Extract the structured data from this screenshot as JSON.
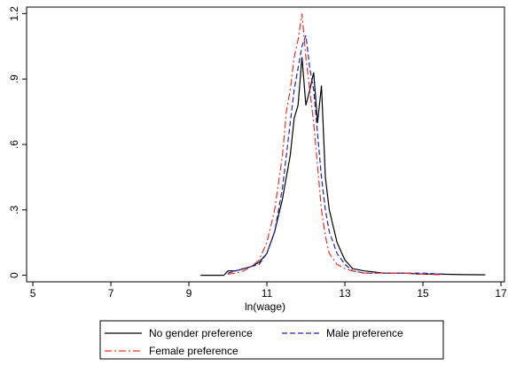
{
  "chart_data": {
    "type": "line",
    "xlabel": "ln(wage)",
    "x": [
      9.3,
      9.6,
      9.9,
      10.0,
      10.2,
      10.4,
      10.6,
      10.8,
      11.0,
      11.2,
      11.4,
      11.5,
      11.6,
      11.7,
      11.8,
      11.9,
      12.0,
      12.1,
      12.2,
      12.3,
      12.4,
      12.5,
      12.6,
      12.8,
      13.0,
      13.2,
      13.5,
      14.0,
      14.5,
      15.0,
      15.5,
      16.0,
      16.6
    ],
    "series": [
      {
        "name": "No gender preference",
        "color": "#000000",
        "style": "solid",
        "values": [
          0,
          0,
          0,
          0.02,
          0.02,
          0.03,
          0.04,
          0.06,
          0.1,
          0.2,
          0.35,
          0.45,
          0.55,
          0.72,
          0.78,
          1.0,
          0.78,
          0.85,
          0.93,
          0.7,
          0.87,
          0.45,
          0.3,
          0.15,
          0.07,
          0.03,
          0.02,
          0.01,
          0.01,
          0.005,
          0.005,
          0.003,
          0.002
        ]
      },
      {
        "name": "Male preference",
        "color": "#2222bb",
        "style": "dashed",
        "values": [
          null,
          null,
          null,
          0.01,
          0.02,
          0.03,
          0.04,
          0.05,
          0.1,
          0.2,
          0.4,
          0.55,
          0.7,
          0.85,
          0.95,
          1.05,
          1.1,
          0.95,
          0.85,
          0.65,
          0.45,
          0.3,
          0.2,
          0.1,
          0.05,
          0.02,
          0.01,
          0.01,
          0.01,
          0.01,
          0.005,
          null,
          null
        ]
      },
      {
        "name": "Female preference",
        "color": "#e8302a",
        "style": "dashdot",
        "values": [
          null,
          null,
          null,
          0.005,
          0.01,
          0.02,
          0.04,
          0.07,
          0.15,
          0.3,
          0.55,
          0.75,
          0.85,
          1.0,
          1.08,
          1.2,
          1.0,
          0.85,
          0.7,
          0.5,
          0.3,
          0.18,
          0.1,
          0.05,
          0.03,
          0.02,
          0.01,
          0.01,
          0.01,
          0.005,
          0.002,
          null,
          null
        ]
      }
    ],
    "xlim": [
      4.84,
      17.09
    ],
    "xticks": [
      5,
      7,
      9,
      11,
      13,
      15,
      17
    ],
    "ylim": [
      -0.03,
      1.23
    ],
    "yticks": [
      0,
      {
        "value": 0.3,
        "label": ".3"
      },
      {
        "value": 0.6,
        "label": ".6"
      },
      {
        "value": 0.9,
        "label": ".9"
      },
      1.2
    ],
    "legend": "bottom"
  }
}
